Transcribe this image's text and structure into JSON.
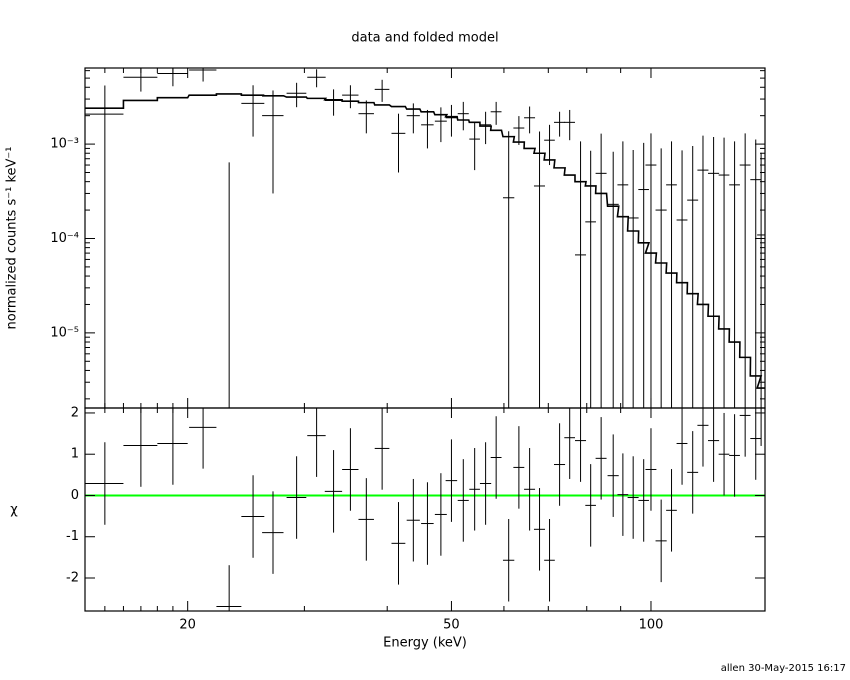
{
  "chart_data": {
    "type": "spectrum",
    "title": "data and folded model",
    "xlabel": "Energy (keV)",
    "ylabel": "normalized counts s⁻¹ keV⁻¹",
    "chi_label": "χ",
    "footer": "allen  30-May-2015 16:17",
    "xlog": true,
    "ylog": true,
    "xlim": [
      14,
      148.6
    ],
    "xticks": [
      20,
      50,
      100
    ],
    "xminor": [
      15,
      16,
      17,
      18,
      19,
      30,
      40,
      60,
      70,
      80,
      90
    ],
    "ylim": [
      1.6e-06,
      0.0064
    ],
    "yticks": [
      {
        "value": 1e-05,
        "label": "10⁻⁵"
      },
      {
        "value": 0.0001,
        "label": "10⁻⁴"
      },
      {
        "value": 0.001,
        "label": "10⁻³"
      }
    ],
    "yminor": [
      2e-06,
      3e-06,
      4e-06,
      5e-06,
      6e-06,
      7e-06,
      8e-06,
      9e-06,
      2e-05,
      3e-05,
      4e-05,
      5e-05,
      6e-05,
      7e-05,
      8e-05,
      9e-05,
      0.0002,
      0.0003,
      0.0004,
      0.0005,
      0.0006,
      0.0007,
      0.0008,
      0.0009,
      0.002,
      0.003,
      0.004,
      0.005,
      0.006
    ],
    "chilim": [
      -2.8,
      2.12
    ],
    "chiticks": [
      -2,
      -1,
      0,
      1,
      2
    ],
    "chi_line": 0,
    "chi_line_color": "#00ff00",
    "data_color": "#000000",
    "model_color": "#000000",
    "x": [
      15.0,
      17.0,
      19.0,
      21.1,
      23.1,
      25.1,
      26.9,
      29.2,
      31.3,
      33.2,
      35.2,
      37.2,
      39.3,
      41.6,
      43.8,
      46.0,
      48.2,
      50.0,
      52.1,
      54.2,
      56.3,
      58.4,
      61.0,
      63.2,
      65.6,
      67.9,
      70.3,
      72.8,
      75.4,
      78.3,
      81.1,
      84.1,
      87.7,
      90.7,
      94.0,
      97.5,
      100,
      103.6,
      107.4,
      111.4,
      115.6,
      119.8,
      124.3,
      128.9,
      133.7,
      138.7,
      143.9,
      146.6
    ],
    "xerr": [
      1,
      1,
      1,
      1,
      1,
      1,
      1,
      1,
      1,
      1,
      1,
      1,
      1,
      1,
      1,
      1,
      1,
      1,
      1.0,
      1.0,
      1.1,
      1.1,
      1.2,
      1.2,
      1.25,
      1.3,
      1.3,
      1.4,
      1.4,
      1.5,
      1.5,
      1.6,
      1.7,
      1.7,
      1.8,
      1.8,
      1.9,
      2.0,
      2.0,
      2.1,
      2.2,
      2.3,
      2.4,
      2.4,
      2.5,
      2.6,
      2.7,
      2.0
    ],
    "y": [
      0.00208,
      0.0051,
      0.0056,
      0.0061,
      0,
      0.0027,
      0.002,
      0.00346,
      0.0051,
      0.0029,
      0.0033,
      0.0021,
      0.0038,
      0.0013,
      0.002,
      0.0016,
      0.00175,
      0.0019,
      0.0021,
      0.00113,
      0.0016,
      0.0022,
      0.00027,
      0.00148,
      0.0019,
      0.00036,
      0.0011,
      0.0017,
      0.0017,
      6.7e-05,
      0.00015,
      0.00049,
      0.00023,
      0.00037,
      0.000165,
      0.00033,
      0.0006,
      0.0002,
      0.00037,
      0.000157,
      0.000255,
      0.00053,
      0.00049,
      0.00047,
      0.00037,
      0.0006,
      0.00042,
      0.000109
    ],
    "yerr": [
      0.0021,
      0.0015,
      0.0015,
      0.0015,
      0.00064,
      0.0015,
      0.0017,
      0.001,
      0.0011,
      0.0009,
      0.0009,
      0.0008,
      0.001,
      0.0008,
      0.0007,
      0.0007,
      0.0007,
      0.0007,
      0.0007,
      0.0006,
      0.0006,
      0.0006,
      0.0011,
      0.0005,
      0.0006,
      0.001,
      0.0005,
      0.0005,
      0.0006,
      0.001,
      0.0007,
      0.0008,
      0.0006,
      0.0007,
      0.0007,
      0.0007,
      0.0007,
      0.0007,
      0.0007,
      0.0007,
      0.0007,
      0.0007,
      0.0007,
      0.0007,
      0.0007,
      0.0007,
      0.0007,
      0.0007
    ],
    "model": [
      0.0024,
      0.0029,
      0.0031,
      0.0033,
      0.0034,
      0.0033,
      0.00325,
      0.00315,
      0.00305,
      0.00295,
      0.00285,
      0.00275,
      0.0026,
      0.0025,
      0.00235,
      0.0022,
      0.00205,
      0.00195,
      0.0018,
      0.0017,
      0.00155,
      0.0014,
      0.0012,
      0.00105,
      0.0009,
      0.0008,
      0.00068,
      0.00056,
      0.00047,
      0.0004,
      0.00036,
      0.0003,
      0.00022,
      0.00017,
      0.00012,
      9e-05,
      7e-05,
      5.5e-05,
      4.3e-05,
      3.4e-05,
      2.6e-05,
      2e-05,
      1.5e-05,
      1.1e-05,
      8e-06,
      5.5e-06,
      3.5e-06,
      2.6e-06
    ],
    "chi": [
      0.29,
      1.21,
      1.26,
      1.65,
      -2.69,
      -0.51,
      -0.9,
      -0.05,
      1.45,
      0.1,
      0.63,
      -0.58,
      1.14,
      -1.16,
      -0.6,
      -0.68,
      -0.46,
      0.36,
      -0.12,
      0.15,
      0.29,
      0.92,
      -1.57,
      0.68,
      0.15,
      -0.82,
      -1.57,
      0.75,
      1.4,
      1.33,
      -0.24,
      0.9,
      0.48,
      0.02,
      -0.05,
      -0.12,
      0.63,
      -1.1,
      -0.36,
      1.26,
      0.56,
      1.7,
      1.33,
      1.0,
      0.97,
      1.94,
      1.38,
      2.2
    ],
    "chi_err": [
      1,
      1,
      1,
      1,
      1,
      1,
      1,
      1,
      1,
      1,
      1,
      1,
      1,
      1,
      1,
      1,
      1,
      1,
      1,
      1,
      1,
      1,
      1,
      1,
      1,
      1,
      1,
      1,
      1,
      1,
      1,
      1,
      1,
      1,
      1,
      1,
      1,
      1,
      1,
      1,
      1,
      1,
      1,
      1,
      1,
      1,
      1,
      1
    ]
  }
}
